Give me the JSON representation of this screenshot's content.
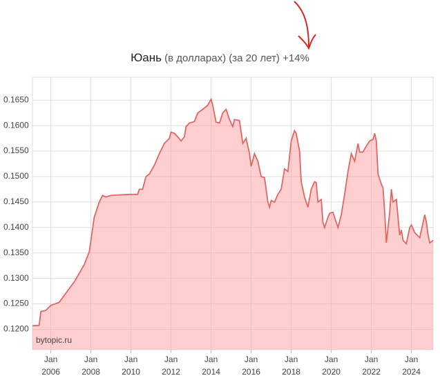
{
  "chart_data": {
    "type": "area",
    "title": "Юань",
    "subtitle": "(в долларах) (за 20 лет) +14%",
    "source": "bytopic.ru",
    "color": "#e06666",
    "fill": "rgba(255,160,160,0.5)",
    "grid": true,
    "x": [
      "2005-02",
      "2005-06",
      "2005-07",
      "2005-10",
      "2005-12",
      "2006-01",
      "2006-06",
      "2006-12",
      "2007-03",
      "2007-06",
      "2007-09",
      "2007-12",
      "2008-03",
      "2008-06",
      "2008-08",
      "2008-10",
      "2009-01",
      "2009-06",
      "2009-12",
      "2010-03",
      "2010-05",
      "2010-06",
      "2010-08",
      "2010-10",
      "2010-12",
      "2011-03",
      "2011-06",
      "2011-09",
      "2011-12",
      "2012-01",
      "2012-03",
      "2012-05",
      "2012-07",
      "2012-09",
      "2012-10",
      "2012-12",
      "2013-03",
      "2013-05",
      "2013-08",
      "2013-11",
      "2014-01",
      "2014-02",
      "2014-04",
      "2014-06",
      "2014-08",
      "2014-10",
      "2014-12",
      "2015-02",
      "2015-03",
      "2015-06",
      "2015-08",
      "2015-10",
      "2015-12",
      "2016-01",
      "2016-03",
      "2016-05",
      "2016-07",
      "2016-09",
      "2016-11",
      "2016-12",
      "2017-01",
      "2017-03",
      "2017-05",
      "2017-07",
      "2017-09",
      "2017-11",
      "2018-01",
      "2018-03",
      "2018-04",
      "2018-06",
      "2018-07",
      "2018-09",
      "2018-11",
      "2019-01",
      "2019-03",
      "2019-04",
      "2019-05",
      "2019-07",
      "2019-08",
      "2019-09",
      "2019-11",
      "2019-12",
      "2020-02",
      "2020-04",
      "2020-05",
      "2020-07",
      "2020-09",
      "2020-11",
      "2021-01",
      "2021-03",
      "2021-05",
      "2021-06",
      "2021-08",
      "2021-10",
      "2021-12",
      "2022-02",
      "2022-03",
      "2022-04",
      "2022-05",
      "2022-07",
      "2022-08",
      "2022-09",
      "2022-10",
      "2022-12",
      "2023-01",
      "2023-02",
      "2023-04",
      "2023-06",
      "2023-07",
      "2023-08",
      "2023-10",
      "2023-12",
      "2024-01",
      "2024-03",
      "2024-06",
      "2024-08",
      "2024-09",
      "2024-10",
      "2024-11",
      "2024-12",
      "2025-01",
      "2025-02"
    ],
    "values": [
      0.1207,
      0.1208,
      0.1235,
      0.1237,
      0.1244,
      0.1247,
      0.1253,
      0.128,
      0.1293,
      0.131,
      0.1327,
      0.1352,
      0.142,
      0.145,
      0.1463,
      0.146,
      0.1463,
      0.1464,
      0.1465,
      0.1465,
      0.1465,
      0.1475,
      0.1475,
      0.15,
      0.1505,
      0.1522,
      0.1545,
      0.1565,
      0.1575,
      0.1587,
      0.1585,
      0.1578,
      0.157,
      0.1578,
      0.1598,
      0.1605,
      0.1608,
      0.1625,
      0.1632,
      0.164,
      0.1652,
      0.164,
      0.1607,
      0.1605,
      0.1625,
      0.1632,
      0.1612,
      0.1598,
      0.1612,
      0.161,
      0.1565,
      0.1575,
      0.1545,
      0.152,
      0.1545,
      0.153,
      0.15,
      0.1498,
      0.145,
      0.144,
      0.1453,
      0.145,
      0.1465,
      0.1475,
      0.1515,
      0.151,
      0.157,
      0.159,
      0.1585,
      0.155,
      0.149,
      0.146,
      0.144,
      0.1475,
      0.149,
      0.1488,
      0.145,
      0.1455,
      0.141,
      0.14,
      0.142,
      0.1428,
      0.143,
      0.141,
      0.14,
      0.1425,
      0.1465,
      0.151,
      0.1545,
      0.153,
      0.1565,
      0.1548,
      0.1548,
      0.156,
      0.157,
      0.1573,
      0.1585,
      0.157,
      0.1505,
      0.1485,
      0.1478,
      0.143,
      0.137,
      0.143,
      0.1475,
      0.145,
      0.1455,
      0.1385,
      0.1395,
      0.1375,
      0.1368,
      0.14,
      0.1405,
      0.139,
      0.138,
      0.141,
      0.1425,
      0.141,
      0.1385,
      0.137,
      0.1372,
      0.1375
    ],
    "xlim": [
      "2005-02",
      "2025-02"
    ],
    "xticks": [
      {
        "value": "2006-01",
        "label": "Jan 2006"
      },
      {
        "value": "2008-01",
        "label": "Jan 2008"
      },
      {
        "value": "2010-01",
        "label": "Jan 2010"
      },
      {
        "value": "2012-01",
        "label": "Jan 2012"
      },
      {
        "value": "2014-01",
        "label": "Jan 2014"
      },
      {
        "value": "2016-01",
        "label": "Jan 2016"
      },
      {
        "value": "2018-01",
        "label": "Jan 2018"
      },
      {
        "value": "2020-01",
        "label": "Jan 2020"
      },
      {
        "value": "2022-01",
        "label": "Jan 2022"
      },
      {
        "value": "2024-01",
        "label": "Jan 2024"
      }
    ],
    "ylim": [
      0.116,
      0.1695
    ],
    "yticks": [
      {
        "value": 0.12,
        "label": "0.1200"
      },
      {
        "value": 0.125,
        "label": "0.1250"
      },
      {
        "value": 0.13,
        "label": "0.1300"
      },
      {
        "value": 0.135,
        "label": "0.1350"
      },
      {
        "value": 0.14,
        "label": "0.1400"
      },
      {
        "value": 0.145,
        "label": "0.1450"
      },
      {
        "value": 0.15,
        "label": "0.1500"
      },
      {
        "value": 0.155,
        "label": "0.1550"
      },
      {
        "value": 0.16,
        "label": "0.1600"
      },
      {
        "value": 0.165,
        "label": "0.1650"
      }
    ]
  }
}
